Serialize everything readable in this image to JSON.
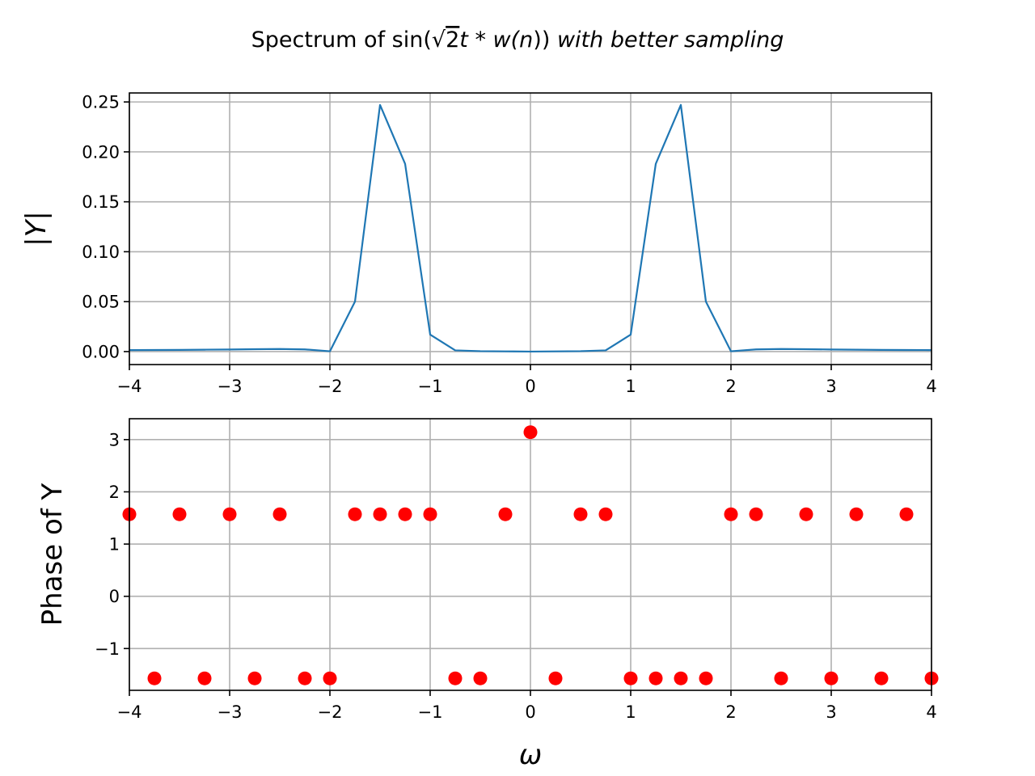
{
  "title": {
    "prefix": "Spectrum of sin(",
    "sqrt_arg": "2",
    "t_part": "t * w",
    "n_part": "(n",
    "close": "))",
    "suffix": " with better sampling"
  },
  "chart_data": [
    {
      "type": "line",
      "ylabel": "|Y|",
      "xlabel": "",
      "xlim": [
        -4,
        4
      ],
      "ylim": [
        -0.013,
        0.259
      ],
      "grid": true,
      "color": "#1f77b4",
      "x_ticks": [
        -4,
        -3,
        -2,
        -1,
        0,
        1,
        2,
        3,
        4
      ],
      "x_tick_labels": [
        "−4",
        "−3",
        "−2",
        "−1",
        "0",
        "1",
        "2",
        "3",
        "4"
      ],
      "y_ticks": [
        0.0,
        0.05,
        0.1,
        0.15,
        0.2,
        0.25
      ],
      "y_tick_labels": [
        "0.00",
        "0.05",
        "0.10",
        "0.15",
        "0.20",
        "0.25"
      ],
      "series": [
        {
          "x": [
            -4,
            -3.75,
            -3.5,
            -3.25,
            -3,
            -2.75,
            -2.5,
            -2.25,
            -2,
            -1.75,
            -1.5,
            -1.25,
            -1,
            -0.75,
            -0.5,
            -0.25,
            0,
            0.25,
            0.5,
            0.75,
            1,
            1.25,
            1.5,
            1.75,
            2,
            2.25,
            2.5,
            2.75,
            3,
            3.25,
            3.5,
            3.75,
            4
          ],
          "values": [
            0.0015,
            0.0016,
            0.0017,
            0.0019,
            0.0021,
            0.0024,
            0.0026,
            0.0022,
            0.0003,
            0.05,
            0.247,
            0.188,
            0.017,
            0.0012,
            0.0004,
            0.0002,
            0.0,
            0.0002,
            0.0004,
            0.0012,
            0.017,
            0.188,
            0.247,
            0.05,
            0.0003,
            0.0022,
            0.0026,
            0.0024,
            0.0021,
            0.0019,
            0.0017,
            0.0016,
            0.0015
          ]
        }
      ]
    },
    {
      "type": "scatter",
      "ylabel": "Phase of Y",
      "xlabel": "ω",
      "xlim": [
        -4,
        4
      ],
      "ylim": [
        -1.8,
        3.4
      ],
      "grid": true,
      "color": "#ff0000",
      "x_ticks": [
        -4,
        -3,
        -2,
        -1,
        0,
        1,
        2,
        3,
        4
      ],
      "x_tick_labels": [
        "−4",
        "−3",
        "−2",
        "−1",
        "0",
        "1",
        "2",
        "3",
        "4"
      ],
      "y_ticks": [
        -1,
        0,
        1,
        2,
        3
      ],
      "y_tick_labels": [
        "−1",
        "0",
        "1",
        "2",
        "3"
      ],
      "series": [
        {
          "x": [
            -4,
            -3.75,
            -3.5,
            -3.25,
            -3,
            -2.75,
            -2.5,
            -2.25,
            -2,
            -1.75,
            -1.5,
            -1.25,
            -1,
            -0.75,
            -0.5,
            -0.25,
            0,
            0.25,
            0.5,
            0.75,
            1,
            1.25,
            1.5,
            1.75,
            2,
            2.25,
            2.5,
            2.75,
            3,
            3.25,
            3.5,
            3.75,
            4
          ],
          "values": [
            1.5708,
            -1.5708,
            1.5708,
            -1.5708,
            1.5708,
            -1.5708,
            1.5708,
            -1.5708,
            -1.5708,
            1.5708,
            1.5708,
            1.5708,
            1.5708,
            -1.5708,
            -1.5708,
            1.5708,
            3.1416,
            -1.5708,
            1.5708,
            1.5708,
            -1.5708,
            -1.5708,
            -1.5708,
            -1.5708,
            1.5708,
            1.5708,
            -1.5708,
            1.5708,
            -1.5708,
            1.5708,
            -1.5708,
            1.5708,
            -1.5708
          ]
        }
      ]
    }
  ]
}
